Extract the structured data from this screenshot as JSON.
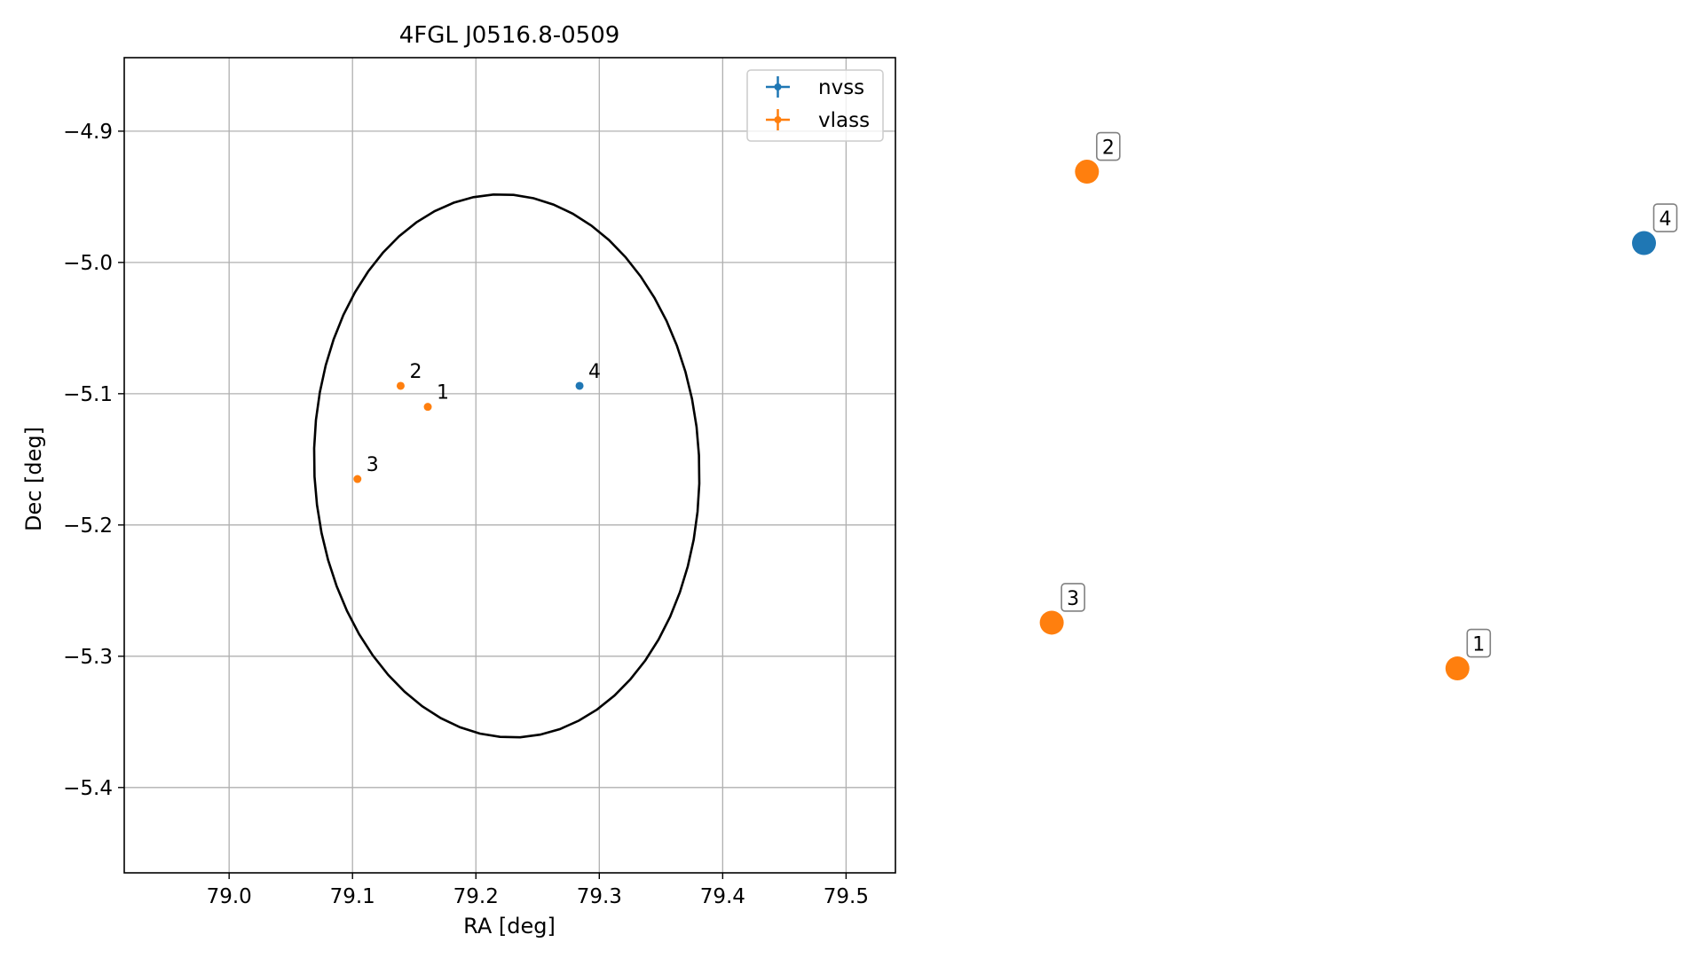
{
  "chart_data": [
    {
      "type": "scatter",
      "title": "4FGL J0516.8-0509",
      "xlabel": "RA [deg]",
      "ylabel": "Dec [deg]",
      "xlim": [
        78.915,
        79.54
      ],
      "ylim": [
        -5.465,
        -4.844
      ],
      "xticks": [
        79.0,
        79.1,
        79.2,
        79.3,
        79.4,
        79.5
      ],
      "xtick_labels": [
        "79.0",
        "79.1",
        "79.2",
        "79.3",
        "79.4",
        "79.5"
      ],
      "yticks": [
        -4.9,
        -5.0,
        -5.1,
        -5.2,
        -5.3,
        -5.4
      ],
      "ytick_labels": [
        "−4.9",
        "−5.0",
        "−5.1",
        "−5.2",
        "−5.3",
        "−5.4"
      ],
      "grid": true,
      "legend": "top-right",
      "ellipse": {
        "center_ra": 79.225,
        "center_dec": -5.155,
        "semi_ra": 0.156,
        "semi_dec": 0.207,
        "rotation_deg": 3,
        "color": "#000000"
      },
      "series": [
        {
          "name": "nvss",
          "color": "#1f77b4",
          "points": [
            {
              "label": "4",
              "ra": 79.284,
              "dec": -5.094
            }
          ]
        },
        {
          "name": "vlass",
          "color": "#ff7f0e",
          "points": [
            {
              "label": "1",
              "ra": 79.161,
              "dec": -5.11
            },
            {
              "label": "2",
              "ra": 79.139,
              "dec": -5.094
            },
            {
              "label": "3",
              "ra": 79.104,
              "dec": -5.165
            }
          ]
        }
      ]
    },
    {
      "type": "scatter",
      "axes_visible": false,
      "xlim": [
        0,
        1
      ],
      "ylim": [
        0,
        1
      ],
      "series": [
        {
          "name": "nvss",
          "color": "#1f77b4",
          "points": [
            {
              "label": "4",
              "x": 0.983,
              "y": 0.827
            }
          ]
        },
        {
          "name": "vlass",
          "color": "#ff7f0e",
          "points": [
            {
              "label": "1",
              "x": 0.697,
              "y": 0.13
            },
            {
              "label": "2",
              "x": 0.129,
              "y": 0.944
            },
            {
              "label": "3",
              "x": 0.075,
              "y": 0.205
            }
          ]
        }
      ]
    }
  ]
}
